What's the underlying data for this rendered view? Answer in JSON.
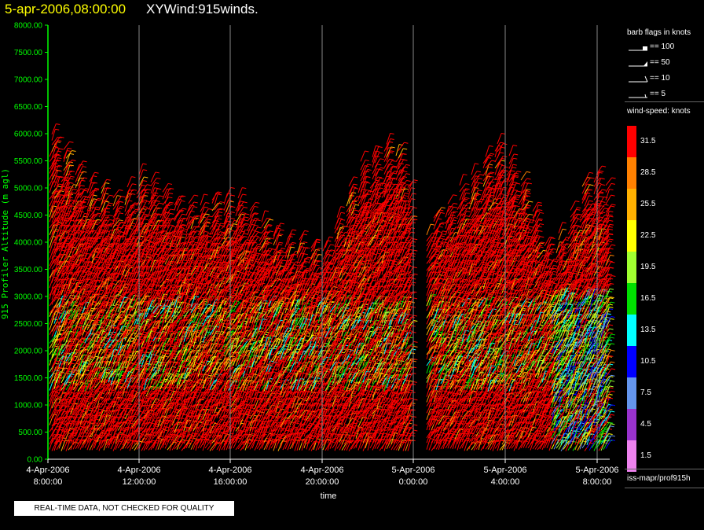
{
  "header": {
    "date_label": "5-apr-2006,08:00:00",
    "title": "XYWind:915winds."
  },
  "chart_data": {
    "type": "wind-barb time-height",
    "ylabel": "915 Profiler Altitude (m agl)",
    "xlabel": "time",
    "ylim": [
      0,
      8000
    ],
    "yticks": [
      "0.00",
      "500.00",
      "1000.00",
      "1500.00",
      "2000.00",
      "2500.00",
      "3000.00",
      "3500.00",
      "4000.00",
      "4500.00",
      "5000.00",
      "5500.00",
      "6000.00",
      "6500.00",
      "7000.00",
      "7500.00",
      "8000.00"
    ],
    "xticks": [
      {
        "date": "4-Apr-2006",
        "time": "8:00:00"
      },
      {
        "date": "4-Apr-2006",
        "time": "12:00:00"
      },
      {
        "date": "4-Apr-2006",
        "time": "16:00:00"
      },
      {
        "date": "4-Apr-2006",
        "time": "20:00:00"
      },
      {
        "date": "5-Apr-2006",
        "time": "0:00:00"
      },
      {
        "date": "5-Apr-2006",
        "time": "4:00:00"
      },
      {
        "date": "5-Apr-2006",
        "time": "8:00:00"
      }
    ],
    "grid": "vertical lines at x ticks",
    "colors": {
      "axis": "#00ff00",
      "grid": "#888888",
      "ticks": "#ffffff"
    },
    "data_summary": {
      "max_height_by_time": [
        {
          "time": "4-Apr-2006 8:00",
          "top": 6200
        },
        {
          "time": "4-Apr-2006 9:30",
          "top": 5300
        },
        {
          "time": "4-Apr-2006 11:00",
          "top": 4800
        },
        {
          "time": "4-Apr-2006 12:00",
          "top": 5300
        },
        {
          "time": "4-Apr-2006 14:00",
          "top": 4700
        },
        {
          "time": "4-Apr-2006 16:00",
          "top": 4900
        },
        {
          "time": "4-Apr-2006 18:00",
          "top": 4200
        },
        {
          "time": "4-Apr-2006 20:00",
          "top": 3900
        },
        {
          "time": "4-Apr-2006 21:30",
          "top": 5400
        },
        {
          "time": "4-Apr-2006 23:00",
          "top": 6000
        },
        {
          "time": "5-Apr-2006 1:00",
          "top": 4500
        },
        {
          "time": "5-Apr-2006 2:30",
          "top": 5300
        },
        {
          "time": "5-Apr-2006 3:30",
          "top": 5900
        },
        {
          "time": "5-Apr-2006 4:30",
          "top": 5400
        },
        {
          "time": "5-Apr-2006 6:00",
          "top": 3800
        },
        {
          "time": "5-Apr-2006 7:30",
          "top": 5300
        }
      ],
      "data_gap": {
        "from": "4-Apr-2006 23:45",
        "to": "5-Apr-2006 0:30"
      },
      "low_speed_band_m": [
        1200,
        2800
      ],
      "dominant_speed_knots": "31.5"
    }
  },
  "legend": {
    "flags_title": "barb flags in knots",
    "flags": [
      {
        "label": "== 100"
      },
      {
        "label": "== 50"
      },
      {
        "label": "== 10"
      },
      {
        "label": "== 5"
      }
    ],
    "speed_title": "wind-speed: knots",
    "speed_scale": [
      {
        "label": "31.5",
        "color": "#ff0000"
      },
      {
        "label": "28.5",
        "color": "#ff8000"
      },
      {
        "label": "25.5",
        "color": "#ffb000"
      },
      {
        "label": "22.5",
        "color": "#ffff00"
      },
      {
        "label": "19.5",
        "color": "#a0ff30"
      },
      {
        "label": "16.5",
        "color": "#00e000"
      },
      {
        "label": "13.5",
        "color": "#00ffff"
      },
      {
        "label": "10.5",
        "color": "#0000ff"
      },
      {
        "label": "7.5",
        "color": "#6495ed"
      },
      {
        "label": "4.5",
        "color": "#9932cc"
      },
      {
        "label": "1.5",
        "color": "#ee82ee"
      }
    ]
  },
  "footer": {
    "source_path": "iss-mapr/prof915h",
    "notice": "REAL-TIME DATA, NOT CHECKED FOR QUALITY"
  }
}
